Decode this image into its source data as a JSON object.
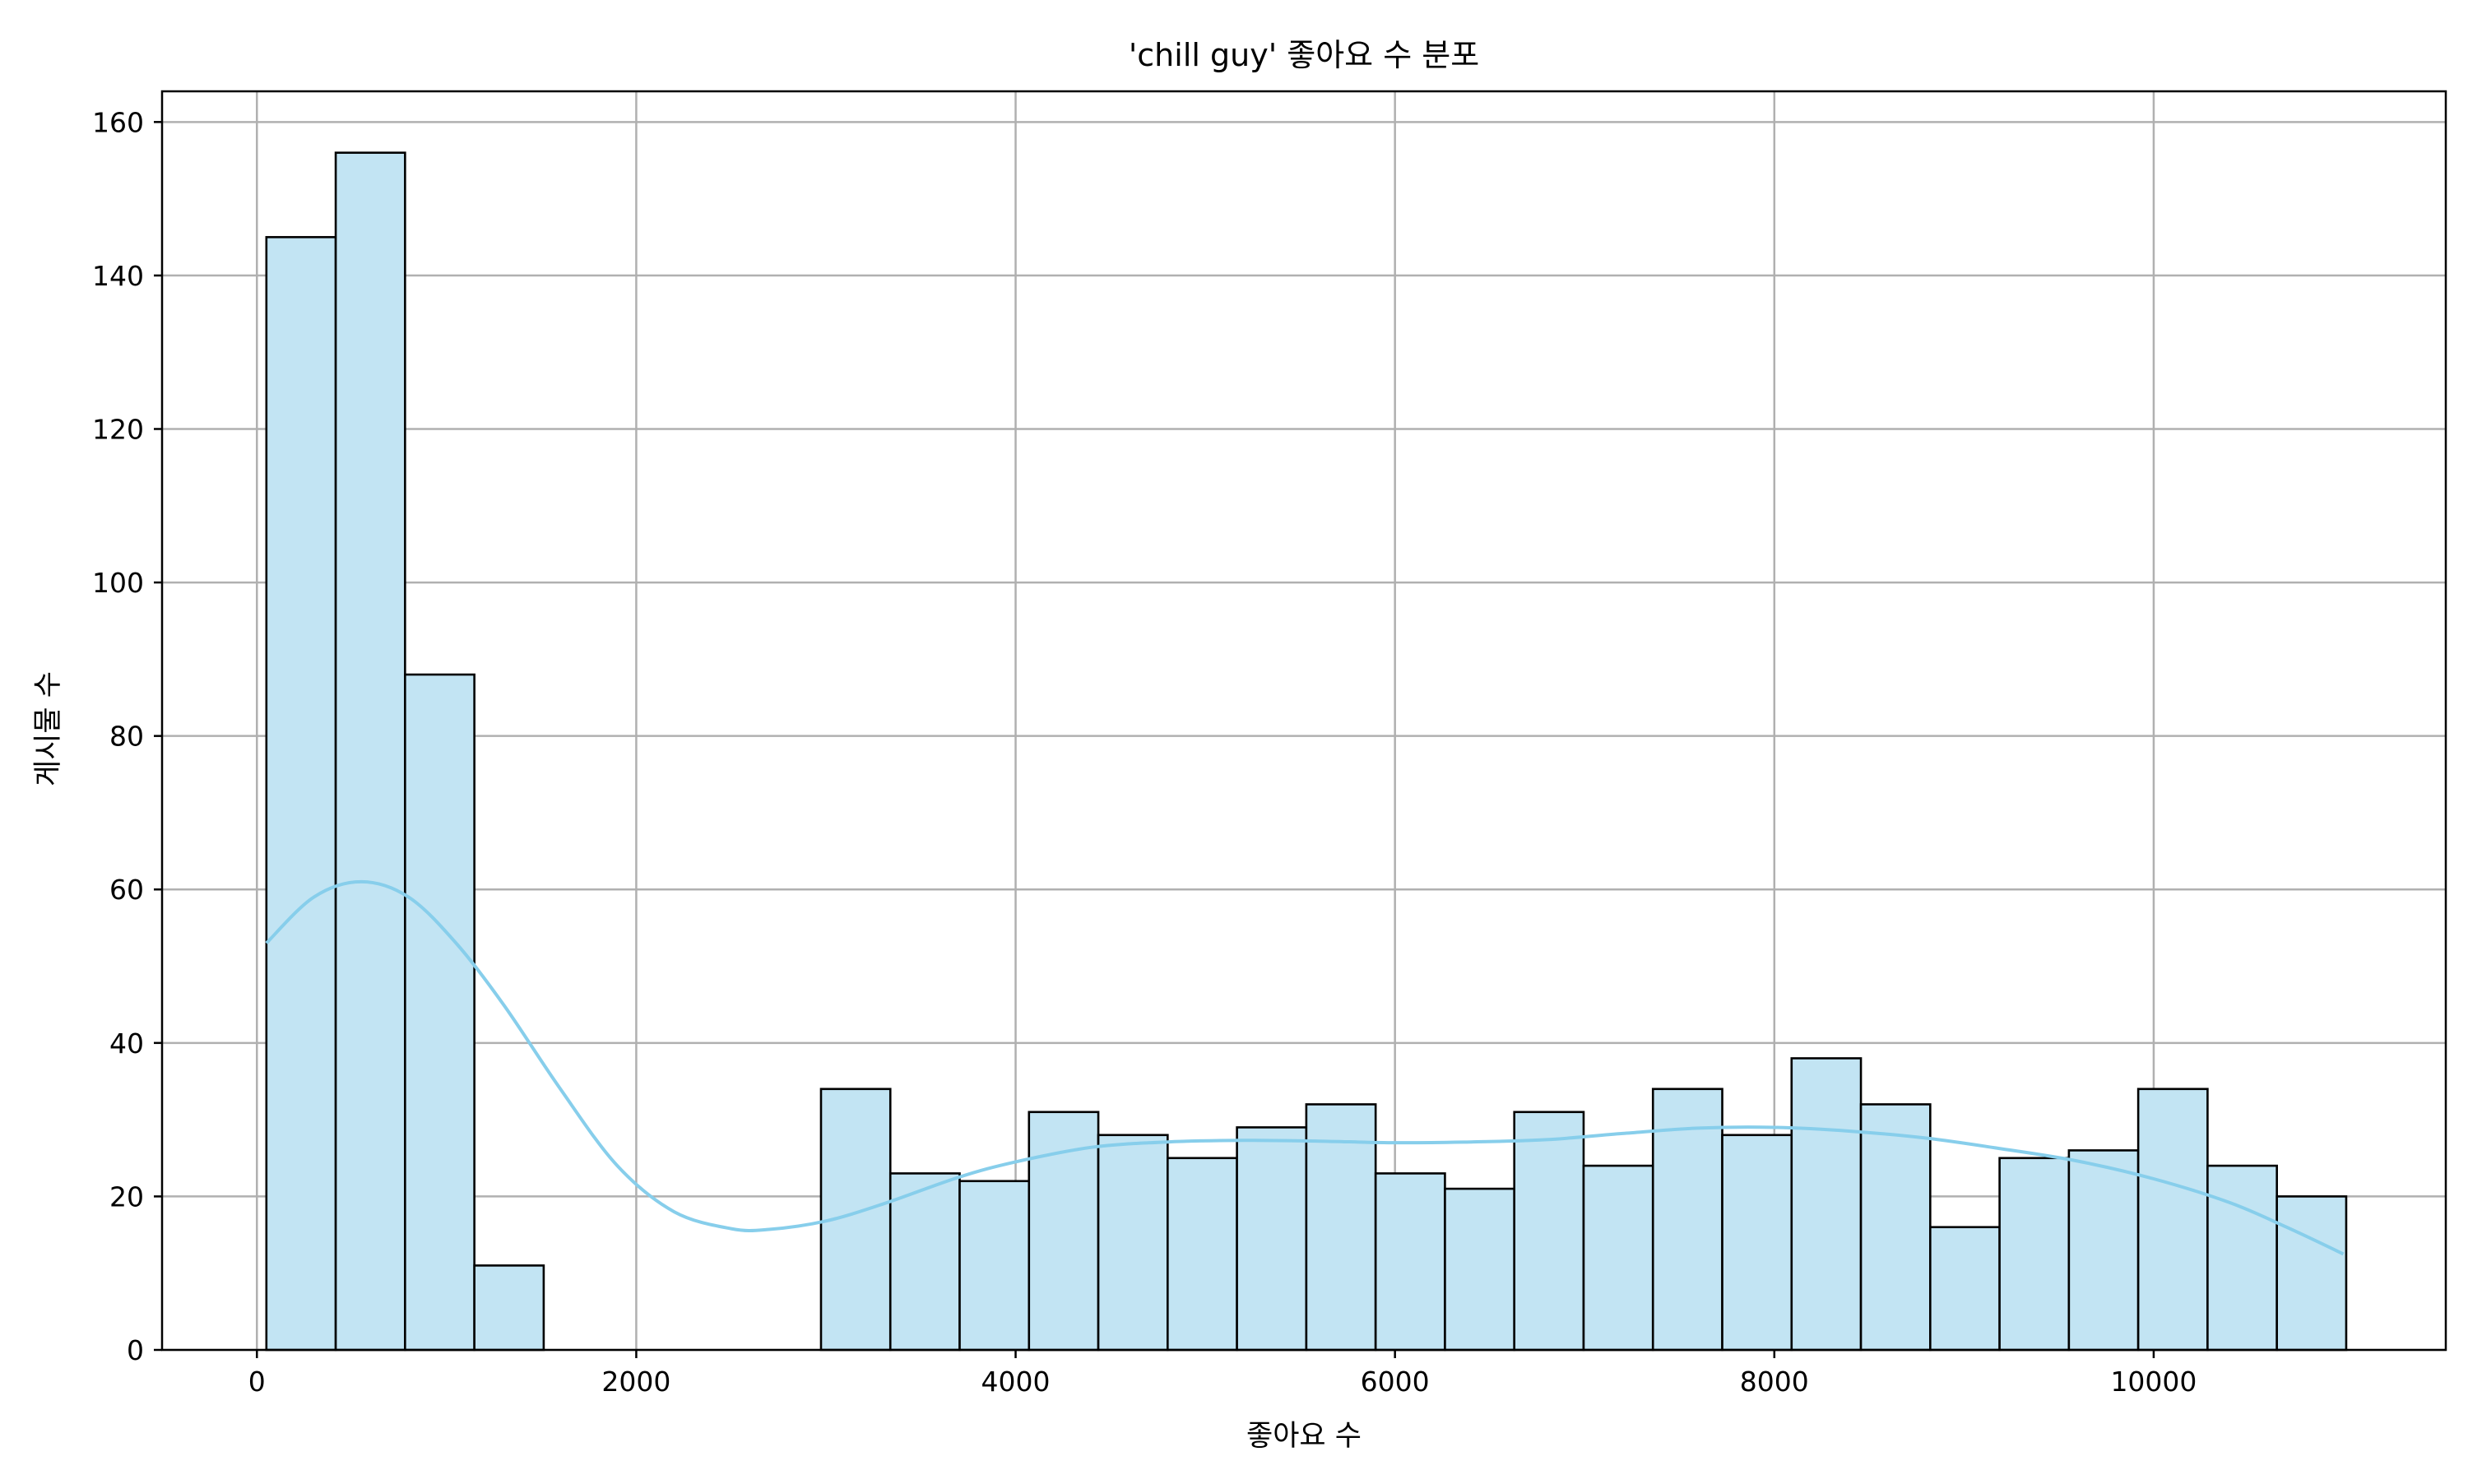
{
  "chart_data": {
    "type": "bar",
    "subtype": "histogram_with_kde",
    "title": "'chill guy' 좋아요 수 분포",
    "xlabel": "좋아요 수",
    "ylabel": "게시물 수",
    "xlim": [
      -500,
      11540
    ],
    "ylim": [
      0,
      164
    ],
    "xticks": [
      0,
      2000,
      4000,
      6000,
      8000,
      10000
    ],
    "yticks": [
      0,
      20,
      40,
      60,
      80,
      100,
      120,
      140,
      160
    ],
    "grid": true,
    "legend": "none",
    "bin_start": 50,
    "bin_width": 365.5,
    "values": [
      145,
      156,
      88,
      11,
      0,
      0,
      0,
      0,
      34,
      23,
      22,
      31,
      28,
      25,
      29,
      32,
      23,
      21,
      31,
      24,
      34,
      28,
      38,
      32,
      16,
      25,
      26,
      34,
      24,
      20
    ],
    "kde": {
      "x": [
        50,
        300,
        550,
        800,
        1050,
        1300,
        1600,
        1900,
        2200,
        2500,
        2700,
        3000,
        3300,
        3700,
        4000,
        4400,
        4800,
        5200,
        5600,
        6000,
        6400,
        6800,
        7200,
        7600,
        8000,
        8400,
        8800,
        9200,
        9600,
        10000,
        10400,
        10700,
        11000
      ],
      "y": [
        53,
        59,
        61,
        59,
        53,
        45,
        34,
        24,
        18,
        15.8,
        15.7,
        16.8,
        19,
        22.5,
        24.5,
        26.4,
        27.1,
        27.3,
        27.2,
        27.0,
        27.1,
        27.4,
        28.2,
        28.9,
        29.0,
        28.5,
        27.6,
        26.2,
        24.6,
        22.3,
        19.2,
        16.0,
        12.5
      ]
    },
    "colors": {
      "bar_fill": "#c2e4f3",
      "bar_edge": "#000000",
      "kde_line": "#87ceeb",
      "grid": "#b0b0b0"
    }
  }
}
